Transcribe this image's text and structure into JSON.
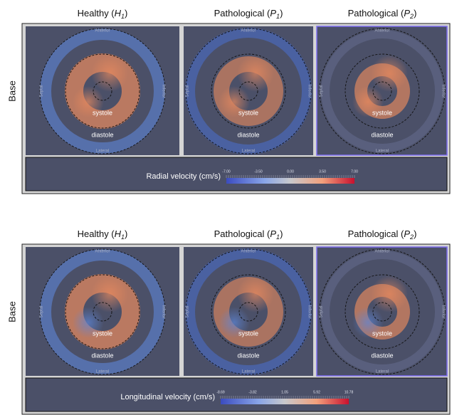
{
  "panels": [
    {
      "row_label": "Base",
      "columns": [
        {
          "prefix": "Healthy (",
          "symbol": "H",
          "sub": "1",
          "suffix": ")"
        },
        {
          "prefix": "Pathological (",
          "symbol": "P",
          "sub": "1",
          "suffix": ")"
        },
        {
          "prefix": "Pathological (",
          "symbol": "P",
          "sub": "2",
          "suffix": ")"
        }
      ],
      "colorbar_title": "Radial velocity (cm/s)",
      "colorbar_ticks": [
        "-7.00",
        "-3.50",
        "0.00",
        "3.50",
        "7.00"
      ]
    },
    {
      "row_label": "Base",
      "columns": [
        {
          "prefix": "Healthy (",
          "symbol": "H",
          "sub": "1",
          "suffix": ")"
        },
        {
          "prefix": "Pathological (",
          "symbol": "P",
          "sub": "1",
          "suffix": ")"
        },
        {
          "prefix": "Pathological (",
          "symbol": "P",
          "sub": "2",
          "suffix": ")"
        }
      ],
      "colorbar_title": "Longitudinal velocity (cm/s)",
      "colorbar_ticks": [
        "-8.69",
        "-3.82",
        "1.05",
        "5.92",
        "10.78"
      ]
    }
  ],
  "plot_labels": {
    "anterior": "Anterior",
    "lateral": "Lateral",
    "septal": "Septal",
    "inferior": "Inferior",
    "systole": "systole",
    "diastole": "diastole"
  }
}
